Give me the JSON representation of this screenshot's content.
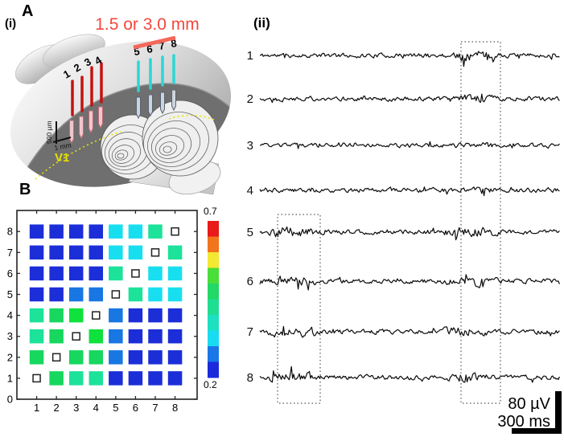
{
  "brain_panel": {
    "panel_label": "A",
    "sub_label": "(i)",
    "distance_label": "1.5 or 3.0 mm",
    "depth_scale_label": "500 µm",
    "pitch_scale_label": "1 mm",
    "area_label": "V1",
    "red_electrodes": [
      "1",
      "2",
      "3",
      "4"
    ],
    "cyan_electrodes": [
      "5",
      "6",
      "7",
      "8"
    ],
    "colors": {
      "red_electrode": "#c41212",
      "cyan_electrode": "#2bd6d6",
      "distance_text": "#f4473c",
      "distance_bar": "#f4685a",
      "area_text": "#e8e000"
    }
  },
  "traces_panel": {
    "label": "(ii)",
    "scale_voltage_label": "80 µV",
    "scale_time_label": "300 ms",
    "trace_color": "#0a0a0a",
    "channels": [
      {
        "label": "1",
        "baseline": 69,
        "amp": 2.5,
        "seed": 11,
        "bursts": [
          [
            0.64,
            0.8,
            2.3
          ]
        ]
      },
      {
        "label": "2",
        "baseline": 123,
        "amp": 2.5,
        "seed": 22,
        "bursts": [
          [
            0.64,
            0.8,
            1.7
          ]
        ]
      },
      {
        "label": "3",
        "baseline": 181,
        "amp": 2.3,
        "seed": 33,
        "bursts": [
          [
            0.64,
            0.8,
            1.5
          ]
        ]
      },
      {
        "label": "4",
        "baseline": 237,
        "amp": 2.5,
        "seed": 44,
        "bursts": [
          [
            0.64,
            0.8,
            1.3
          ]
        ]
      },
      {
        "label": "5",
        "baseline": 289,
        "amp": 2.5,
        "seed": 55,
        "bursts": [
          [
            0.02,
            0.2,
            2.4
          ],
          [
            0.6,
            0.8,
            2.2
          ]
        ]
      },
      {
        "label": "6",
        "baseline": 350,
        "amp": 2.5,
        "seed": 66,
        "bursts": [
          [
            0.02,
            0.2,
            2.2
          ],
          [
            0.6,
            0.8,
            2.2
          ]
        ]
      },
      {
        "label": "7",
        "baseline": 413,
        "amp": 2.6,
        "seed": 77,
        "bursts": [
          [
            0.02,
            0.2,
            2.2
          ],
          [
            0.58,
            0.78,
            2.0
          ]
        ]
      },
      {
        "label": "8",
        "baseline": 470,
        "amp": 2.6,
        "seed": 88,
        "bursts": [
          [
            0.02,
            0.2,
            2.4
          ],
          [
            0.58,
            0.78,
            1.9
          ]
        ]
      }
    ]
  },
  "heatmap_panel": {
    "panel_label": "B"
  },
  "chart_data": {
    "type": "heatmap",
    "title": "",
    "xlabel": "",
    "ylabel": "",
    "x_tick_labels": [
      "1",
      "2",
      "3",
      "4",
      "5",
      "6",
      "7",
      "8"
    ],
    "y_tick_labels": [
      "0",
      "1",
      "2",
      "3",
      "4",
      "5",
      "6",
      "7",
      "8"
    ],
    "colorbar": {
      "min": 0.2,
      "max": 0.7,
      "top_label": "0.7",
      "bottom_label": "0.2",
      "stops_top_to_bottom": [
        "#e81a1a",
        "#f2741d",
        "#f3e832",
        "#4ade3b",
        "#22d866",
        "#1fde92",
        "#1ce0c0",
        "#19dcf2",
        "#1a77e8",
        "#1b2bdc"
      ]
    },
    "palette": {
      "b": "#1b2ed8",
      "db": "#1877e2",
      "c": "#18dff0",
      "sg": "#1ce29a",
      "g": "#17d75f",
      "bg": "#0fe13d"
    },
    "estimated_values": {
      "b": 0.23,
      "db": 0.28,
      "c": 0.34,
      "sg": 0.4,
      "g": 0.43,
      "bg": 0.46
    },
    "diagonal_marker": "open-square",
    "rows_top_to_bottom": [
      {
        "y": 8,
        "cells": [
          "b",
          "b",
          "b",
          "b",
          "c",
          "c",
          "sg",
          "diag"
        ]
      },
      {
        "y": 7,
        "cells": [
          "b",
          "b",
          "b",
          "b",
          "c",
          "c",
          "diag",
          "sg"
        ]
      },
      {
        "y": 6,
        "cells": [
          "b",
          "b",
          "b",
          "b",
          "sg",
          "diag",
          "c",
          "c"
        ]
      },
      {
        "y": 5,
        "cells": [
          "b",
          "b",
          "db",
          "db",
          "diag",
          "sg",
          "c",
          "c"
        ]
      },
      {
        "y": 4,
        "cells": [
          "sg",
          "g",
          "bg",
          "diag",
          "db",
          "b",
          "b",
          "b"
        ]
      },
      {
        "y": 3,
        "cells": [
          "sg",
          "g",
          "diag",
          "bg",
          "db",
          "b",
          "b",
          "b"
        ]
      },
      {
        "y": 2,
        "cells": [
          "g",
          "diag",
          "g",
          "g",
          "db",
          "b",
          "b",
          "b"
        ]
      },
      {
        "y": 1,
        "cells": [
          "diag",
          "g",
          "sg",
          "sg",
          "b",
          "b",
          "b",
          "b"
        ]
      }
    ]
  }
}
